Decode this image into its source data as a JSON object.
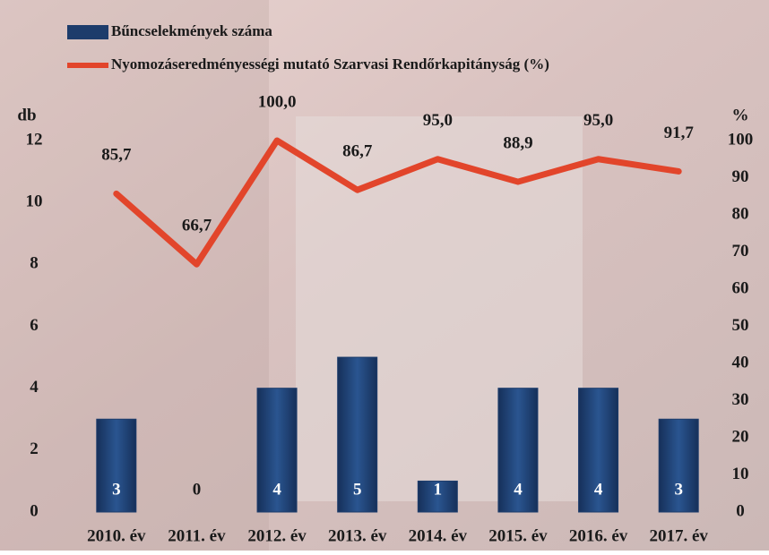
{
  "chart_data": {
    "type": "bar",
    "categories": [
      "2010. év",
      "2011. év",
      "2012. év",
      "2013. év",
      "2014. év",
      "2015. év",
      "2016. év",
      "2017. év"
    ],
    "series": [
      {
        "name": "Bűncselekmények száma",
        "type": "bar",
        "color": "#1d3c6b",
        "axis": "y",
        "values": [
          3,
          0,
          4,
          5,
          1,
          4,
          4,
          3
        ]
      },
      {
        "name": "Nyomozáseredményességi mutató Szarvasi Rendőrkapitányság (%)",
        "type": "line",
        "color": "#e2452b",
        "axis": "y2",
        "values": [
          85.7,
          66.7,
          100,
          86.7,
          95,
          88.9,
          95,
          91.7
        ],
        "value_labels": [
          "85,7",
          "66,7",
          "100,0",
          "86,7",
          "95,0",
          "88,9",
          "95,0",
          "91,7"
        ]
      }
    ],
    "y_label": "db",
    "y2_label": "%",
    "ylim": [
      0,
      12
    ],
    "yticks": [
      0,
      2,
      4,
      6,
      8,
      10,
      12
    ],
    "y2lim": [
      0,
      100
    ],
    "y2ticks": [
      0,
      10,
      20,
      30,
      40,
      50,
      60,
      70,
      80,
      90,
      100
    ],
    "legend": "top-left"
  }
}
